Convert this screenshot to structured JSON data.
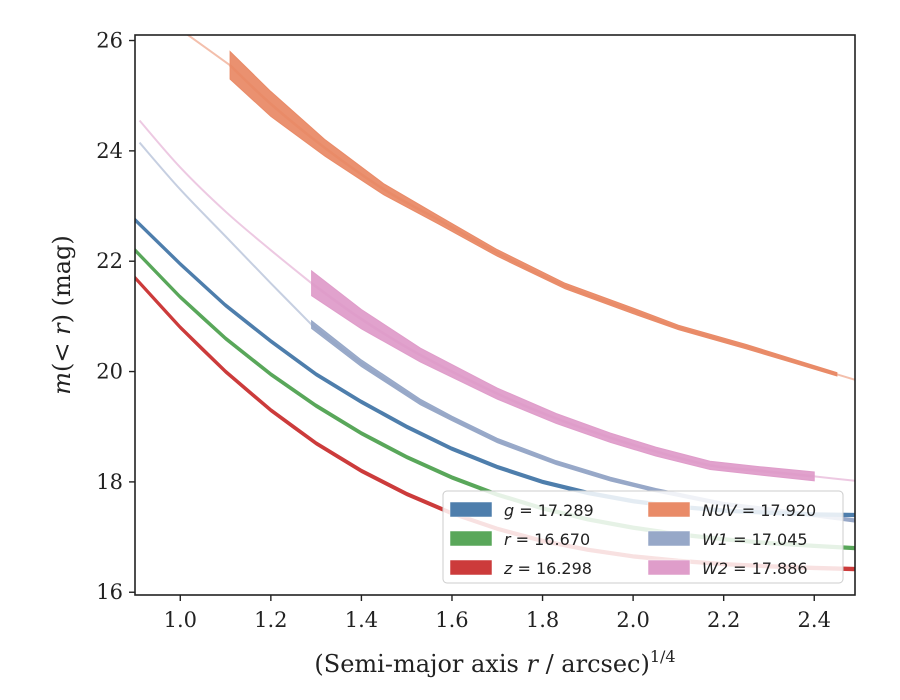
{
  "chart_data": {
    "type": "line",
    "xlabel": {
      "prefix": "(Semi-major axis ",
      "var": "r",
      "suffix": " / arcsec)",
      "exponent": "1/4"
    },
    "ylabel": {
      "prefix": "m(< ",
      "var": "r",
      "suffix": ") (mag)"
    },
    "xlim": [
      0.9,
      2.49
    ],
    "ylim": [
      26.1,
      15.95
    ],
    "y_inverted": true,
    "xticks": [
      "1.0",
      "1.2",
      "1.4",
      "1.6",
      "1.8",
      "2.0",
      "2.2",
      "2.4"
    ],
    "yticks": [
      "16",
      "18",
      "20",
      "22",
      "24",
      "26"
    ],
    "grid": false,
    "legend": {
      "placement": "lower-right",
      "columns": 2
    },
    "series": [
      {
        "name": "g",
        "total_mag": "17.289",
        "color": "#4e7eac",
        "band_width": 0.06,
        "points": [
          [
            0.9,
            22.75
          ],
          [
            1.0,
            21.95
          ],
          [
            1.1,
            21.2
          ],
          [
            1.2,
            20.55
          ],
          [
            1.3,
            19.95
          ],
          [
            1.4,
            19.45
          ],
          [
            1.5,
            19.0
          ],
          [
            1.6,
            18.6
          ],
          [
            1.7,
            18.27
          ],
          [
            1.8,
            18.0
          ],
          [
            1.9,
            17.8
          ],
          [
            2.0,
            17.65
          ],
          [
            2.1,
            17.55
          ],
          [
            2.2,
            17.48
          ],
          [
            2.3,
            17.44
          ],
          [
            2.4,
            17.41
          ],
          [
            2.49,
            17.4
          ]
        ],
        "extrapolated_before": null,
        "extrapolated_after": null
      },
      {
        "name": "r",
        "total_mag": "16.670",
        "color": "#59a75a",
        "band_width": 0.06,
        "points": [
          [
            0.9,
            22.2
          ],
          [
            1.0,
            21.35
          ],
          [
            1.1,
            20.6
          ],
          [
            1.2,
            19.95
          ],
          [
            1.3,
            19.38
          ],
          [
            1.4,
            18.88
          ],
          [
            1.5,
            18.45
          ],
          [
            1.6,
            18.08
          ],
          [
            1.7,
            17.77
          ],
          [
            1.8,
            17.52
          ],
          [
            1.9,
            17.32
          ],
          [
            2.0,
            17.17
          ],
          [
            2.1,
            17.05
          ],
          [
            2.2,
            16.96
          ],
          [
            2.3,
            16.89
          ],
          [
            2.4,
            16.84
          ],
          [
            2.49,
            16.8
          ]
        ],
        "extrapolated_before": null,
        "extrapolated_after": null
      },
      {
        "name": "z",
        "total_mag": "16.298",
        "color": "#cc3b3b",
        "band_width": 0.06,
        "points": [
          [
            0.9,
            21.7
          ],
          [
            1.0,
            20.8
          ],
          [
            1.1,
            20.0
          ],
          [
            1.2,
            19.3
          ],
          [
            1.3,
            18.7
          ],
          [
            1.4,
            18.2
          ],
          [
            1.5,
            17.78
          ],
          [
            1.6,
            17.43
          ],
          [
            1.7,
            17.15
          ],
          [
            1.8,
            16.93
          ],
          [
            1.9,
            16.77
          ],
          [
            2.0,
            16.65
          ],
          [
            2.1,
            16.57
          ],
          [
            2.2,
            16.51
          ],
          [
            2.3,
            16.47
          ],
          [
            2.4,
            16.44
          ],
          [
            2.49,
            16.42
          ]
        ],
        "extrapolated_before": null,
        "extrapolated_after": null
      },
      {
        "name": "NUV",
        "total_mag": "17.920",
        "color": "#e98b68",
        "band_width": 0.14,
        "points": [
          [
            1.11,
            25.55
          ],
          [
            1.2,
            24.85
          ],
          [
            1.32,
            24.05
          ],
          [
            1.45,
            23.3
          ],
          [
            1.57,
            22.75
          ],
          [
            1.7,
            22.15
          ],
          [
            1.85,
            21.55
          ],
          [
            2.0,
            21.1
          ],
          [
            2.1,
            20.8
          ],
          [
            2.25,
            20.45
          ],
          [
            2.35,
            20.2
          ],
          [
            2.45,
            19.95
          ]
        ],
        "band_widths": [
          0.5,
          0.45,
          0.3,
          0.2,
          0.15,
          0.12,
          0.1,
          0.1,
          0.08,
          0.08,
          0.07,
          0.06
        ],
        "extrapolated_before": [
          [
            0.93,
            26.6
          ],
          [
            1.0,
            26.2
          ],
          [
            1.11,
            25.55
          ]
        ],
        "extrapolated_after": [
          [
            2.45,
            19.95
          ],
          [
            2.49,
            19.85
          ]
        ]
      },
      {
        "name": "W1",
        "total_mag": "17.045",
        "color": "#97a8c8",
        "band_width": 0.1,
        "points": [
          [
            1.29,
            20.85
          ],
          [
            1.4,
            20.15
          ],
          [
            1.53,
            19.45
          ],
          [
            1.6,
            19.15
          ],
          [
            1.7,
            18.75
          ],
          [
            1.83,
            18.35
          ],
          [
            1.95,
            18.05
          ],
          [
            2.05,
            17.85
          ],
          [
            2.2,
            17.6
          ],
          [
            2.35,
            17.45
          ],
          [
            2.49,
            17.3
          ]
        ],
        "band_widths": [
          0.14,
          0.12,
          0.1,
          0.08,
          0.08,
          0.07,
          0.07,
          0.06,
          0.06,
          0.06,
          0.06
        ],
        "extrapolated_before": [
          [
            0.91,
            24.15
          ],
          [
            1.0,
            23.3
          ],
          [
            1.1,
            22.45
          ],
          [
            1.2,
            21.6
          ],
          [
            1.29,
            20.85
          ]
        ],
        "extrapolated_after": null
      },
      {
        "name": "W2",
        "total_mag": "17.886",
        "color": "#df9dca",
        "band_width": 0.24,
        "points": [
          [
            1.29,
            21.6
          ],
          [
            1.4,
            20.95
          ],
          [
            1.53,
            20.3
          ],
          [
            1.7,
            19.6
          ],
          [
            1.83,
            19.15
          ],
          [
            1.95,
            18.8
          ],
          [
            2.05,
            18.55
          ],
          [
            2.17,
            18.3
          ],
          [
            2.28,
            18.2
          ],
          [
            2.4,
            18.1
          ]
        ],
        "band_widths": [
          0.45,
          0.35,
          0.25,
          0.2,
          0.18,
          0.17,
          0.16,
          0.15,
          0.15,
          0.16
        ],
        "extrapolated_before": [
          [
            0.91,
            24.55
          ],
          [
            1.0,
            23.7
          ],
          [
            1.1,
            22.9
          ],
          [
            1.2,
            22.2
          ],
          [
            1.29,
            21.6
          ]
        ],
        "extrapolated_after": [
          [
            2.4,
            18.1
          ],
          [
            2.49,
            18.02
          ]
        ]
      }
    ]
  }
}
